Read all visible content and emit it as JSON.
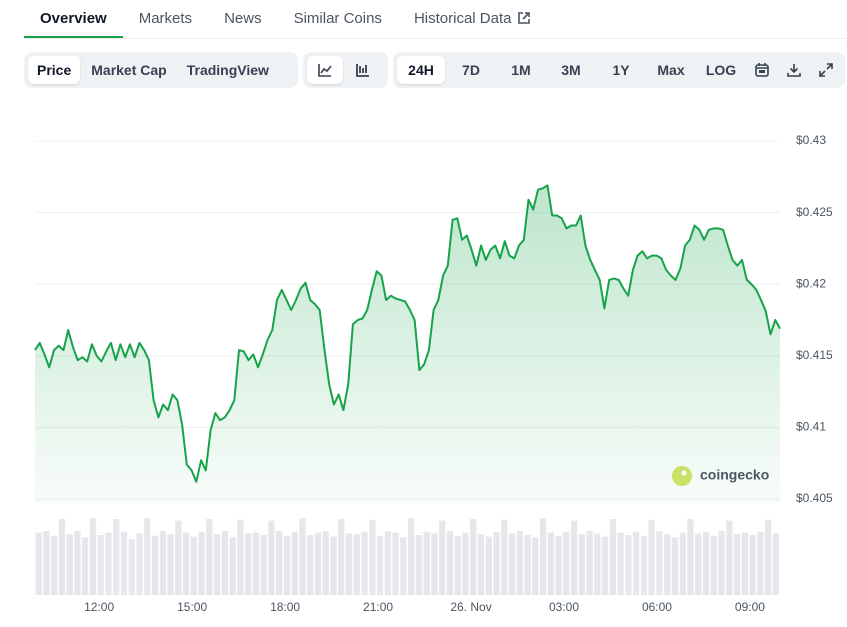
{
  "tabs": [
    {
      "label": "Overview",
      "active": true
    },
    {
      "label": "Markets",
      "active": false
    },
    {
      "label": "News",
      "active": false
    },
    {
      "label": "Similar Coins",
      "active": false
    },
    {
      "label": "Historical Data",
      "active": false
    }
  ],
  "view_buttons": [
    {
      "label": "Price",
      "active": true
    },
    {
      "label": "Market Cap",
      "active": false
    },
    {
      "label": "TradingView",
      "active": false
    }
  ],
  "range_buttons": [
    {
      "label": "24H",
      "active": true
    },
    {
      "label": "7D",
      "active": false
    },
    {
      "label": "1M",
      "active": false
    },
    {
      "label": "3M",
      "active": false
    },
    {
      "label": "1Y",
      "active": false
    },
    {
      "label": "Max",
      "active": false
    },
    {
      "label": "LOG",
      "active": false
    }
  ],
  "chart_data": {
    "type": "area",
    "color": "#16a34a",
    "values": [
      0.4154,
      0.4159,
      0.4151,
      0.4142,
      0.4154,
      0.4157,
      0.4154,
      0.4168,
      0.4156,
      0.4147,
      0.4149,
      0.4146,
      0.4158,
      0.415,
      0.4146,
      0.4153,
      0.4159,
      0.4147,
      0.4158,
      0.4149,
      0.4158,
      0.4149,
      0.4159,
      0.4154,
      0.4147,
      0.4119,
      0.4107,
      0.4116,
      0.4112,
      0.4123,
      0.4119,
      0.4102,
      0.4074,
      0.407,
      0.4062,
      0.4077,
      0.407,
      0.4098,
      0.411,
      0.4105,
      0.4107,
      0.4112,
      0.4119,
      0.4154,
      0.4153,
      0.4147,
      0.4151,
      0.4142,
      0.4151,
      0.4161,
      0.4168,
      0.4189,
      0.4196,
      0.4189,
      0.4182,
      0.4189,
      0.4197,
      0.4201,
      0.4189,
      0.4186,
      0.4182,
      0.4154,
      0.413,
      0.4116,
      0.4123,
      0.4112,
      0.413,
      0.4172,
      0.4175,
      0.4176,
      0.4182,
      0.4196,
      0.4209,
      0.4206,
      0.4189,
      0.4192,
      0.419,
      0.4189,
      0.4188,
      0.4182,
      0.4175,
      0.414,
      0.4144,
      0.4154,
      0.4182,
      0.4189,
      0.4206,
      0.4213,
      0.4245,
      0.4246,
      0.4231,
      0.4234,
      0.4224,
      0.4213,
      0.4227,
      0.4217,
      0.4224,
      0.4227,
      0.4218,
      0.423,
      0.422,
      0.4218,
      0.4227,
      0.4231,
      0.4259,
      0.4252,
      0.4266,
      0.4267,
      0.4269,
      0.4248,
      0.4248,
      0.4246,
      0.4239,
      0.4241,
      0.4241,
      0.4248,
      0.4227,
      0.4217,
      0.421,
      0.4203,
      0.4183,
      0.4203,
      0.4204,
      0.4203,
      0.4197,
      0.4192,
      0.421,
      0.422,
      0.4223,
      0.4218,
      0.422,
      0.422,
      0.4218,
      0.421,
      0.4206,
      0.4203,
      0.4211,
      0.4227,
      0.4231,
      0.4241,
      0.4238,
      0.4231,
      0.4238,
      0.4239,
      0.4239,
      0.4238,
      0.4227,
      0.4217,
      0.4213,
      0.4217,
      0.4203,
      0.42,
      0.4196,
      0.4189,
      0.4181,
      0.4165,
      0.4175,
      0.4169
    ],
    "ylim": [
      0.405,
      0.43
    ],
    "yticks": [
      {
        "value": 0.405,
        "label": "$0.405"
      },
      {
        "value": 0.41,
        "label": "$0.41"
      },
      {
        "value": 0.415,
        "label": "$0.415"
      },
      {
        "value": 0.42,
        "label": "$0.42"
      },
      {
        "value": 0.425,
        "label": "$0.425"
      },
      {
        "value": 0.43,
        "label": "$0.43"
      }
    ],
    "xlim": [
      -2.07,
      21.97
    ],
    "xticks": [
      {
        "value": 0,
        "label": "12:00"
      },
      {
        "value": 3,
        "label": "15:00"
      },
      {
        "value": 6,
        "label": "18:00"
      },
      {
        "value": 9,
        "label": "21:00"
      },
      {
        "value": 12,
        "label": "26. Nov"
      },
      {
        "value": 15,
        "label": "03:00"
      },
      {
        "value": 18,
        "label": "06:00"
      },
      {
        "value": 21,
        "label": "09:00"
      }
    ],
    "grid": true,
    "watermark": "coingecko",
    "volume": {
      "color": "#e5e7eb",
      "ylim": [
        0,
        100
      ],
      "values": [
        78,
        80,
        74,
        95,
        76,
        80,
        72,
        96,
        75,
        78,
        95,
        79,
        70,
        77,
        96,
        74,
        80,
        76,
        93,
        78,
        73,
        79,
        95,
        76,
        80,
        72,
        94,
        77,
        78,
        75,
        93,
        80,
        74,
        79,
        96,
        75,
        78,
        80,
        73,
        95,
        77,
        76,
        79,
        94,
        74,
        80,
        78,
        72,
        96,
        75,
        79,
        77,
        93,
        80,
        74,
        78,
        95,
        76,
        73,
        79,
        94,
        77,
        80,
        75,
        72,
        96,
        78,
        74,
        79,
        93,
        76,
        80,
        77,
        73,
        95,
        78,
        75,
        79,
        74,
        94,
        80,
        76,
        72,
        78,
        95,
        77,
        79,
        74,
        80,
        93,
        76,
        78,
        75,
        79,
        94,
        77
      ]
    }
  }
}
